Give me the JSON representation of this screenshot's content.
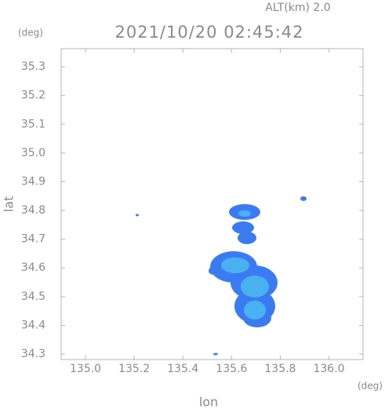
{
  "chart_data": {
    "type": "map",
    "title": "2021/10/20 02:45:42",
    "subtitle": "ALT(km)  2.0",
    "x_label": "lon",
    "y_label": "lat",
    "x_unit": "(deg)",
    "y_unit": "(deg)",
    "xlim": [
      134.9,
      136.14
    ],
    "ylim": [
      34.281,
      35.363
    ],
    "xticks": [
      {
        "value": 135,
        "label": "135.0"
      },
      135.2,
      135.4,
      135.6,
      135.8,
      {
        "value": 136,
        "label": "136.0"
      }
    ],
    "yticks": [
      34.3,
      34.4,
      34.5,
      34.6,
      34.7,
      34.8,
      34.9,
      {
        "value": 35,
        "label": "35.0"
      },
      35.1,
      35.2,
      35.3
    ],
    "color": "#3b7bf2"
  }
}
